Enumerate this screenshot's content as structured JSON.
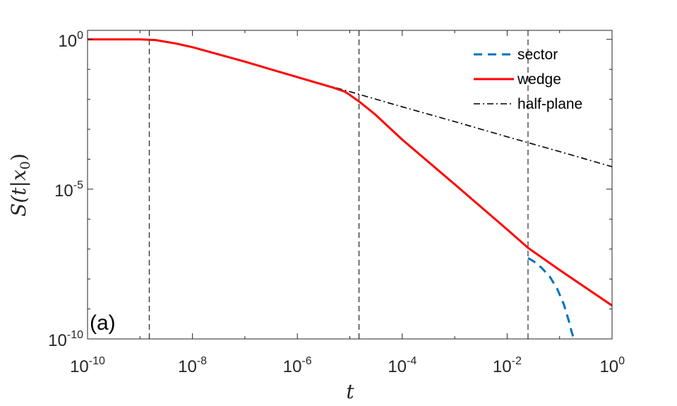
{
  "chart_data": {
    "type": "line",
    "x_scale": "log",
    "y_scale": "log",
    "xlabel": "t",
    "ylabel": "S(t|x_0)",
    "xlim": [
      1e-10,
      1
    ],
    "ylim": [
      1e-10,
      2
    ],
    "x_ticks": [
      {
        "value": 1e-10,
        "base": "10",
        "exp": "-10"
      },
      {
        "value": 1e-08,
        "base": "10",
        "exp": "-8"
      },
      {
        "value": 1e-06,
        "base": "10",
        "exp": "-6"
      },
      {
        "value": 0.0001,
        "base": "10",
        "exp": "-4"
      },
      {
        "value": 0.01,
        "base": "10",
        "exp": "-2"
      },
      {
        "value": 1,
        "base": "10",
        "exp": "0"
      }
    ],
    "y_ticks": [
      {
        "value": 1e-10,
        "base": "10",
        "exp": "-10"
      },
      {
        "value": 1e-05,
        "base": "10",
        "exp": "-5"
      },
      {
        "value": 1,
        "base": "10",
        "exp": "0"
      }
    ],
    "vertical_lines": [
      1.5e-09,
      1.5e-05,
      0.025
    ],
    "panel_label": "(a)",
    "legend_position": "top-right",
    "series": [
      {
        "name": "sector",
        "color": "#0072BD",
        "style": "dashed",
        "x": [
          0.025,
          0.032,
          0.045,
          0.065,
          0.09,
          0.12,
          0.15,
          0.17,
          0.19,
          0.2
        ],
        "y": [
          5e-08,
          3.9e-08,
          2.4e-08,
          1.2e-08,
          4.7e-09,
          1.45e-09,
          4e-10,
          1.7e-10,
          9e-11,
          7e-11
        ]
      },
      {
        "name": "wedge",
        "color": "#FF0000",
        "style": "solid",
        "x": [
          1e-10,
          1e-09,
          2e-09,
          5e-09,
          1e-08,
          1e-07,
          1e-06,
          5e-06,
          8e-06,
          1e-05,
          1.5e-05,
          3e-05,
          0.0001,
          0.001,
          0.01,
          0.025,
          0.1,
          1
        ],
        "y": [
          1,
          1,
          0.95,
          0.72,
          0.55,
          0.18,
          0.055,
          0.024,
          0.018,
          0.014,
          0.0085,
          0.0032,
          0.00045,
          1.45e-05,
          4.5e-07,
          1.1e-07,
          2e-08,
          1.3e-09
        ]
      },
      {
        "name": "half-plane",
        "color": "#000000",
        "style": "dashdot",
        "x": [
          1e-10,
          1e-09,
          2e-09,
          5e-09,
          1e-08,
          1e-07,
          1e-06,
          1e-05,
          0.0001,
          0.001,
          0.01,
          0.1,
          1
        ],
        "y": [
          1,
          1,
          0.95,
          0.72,
          0.55,
          0.18,
          0.055,
          0.018,
          0.0056,
          0.0018,
          0.00056,
          0.00018,
          5.6e-05
        ]
      }
    ]
  }
}
